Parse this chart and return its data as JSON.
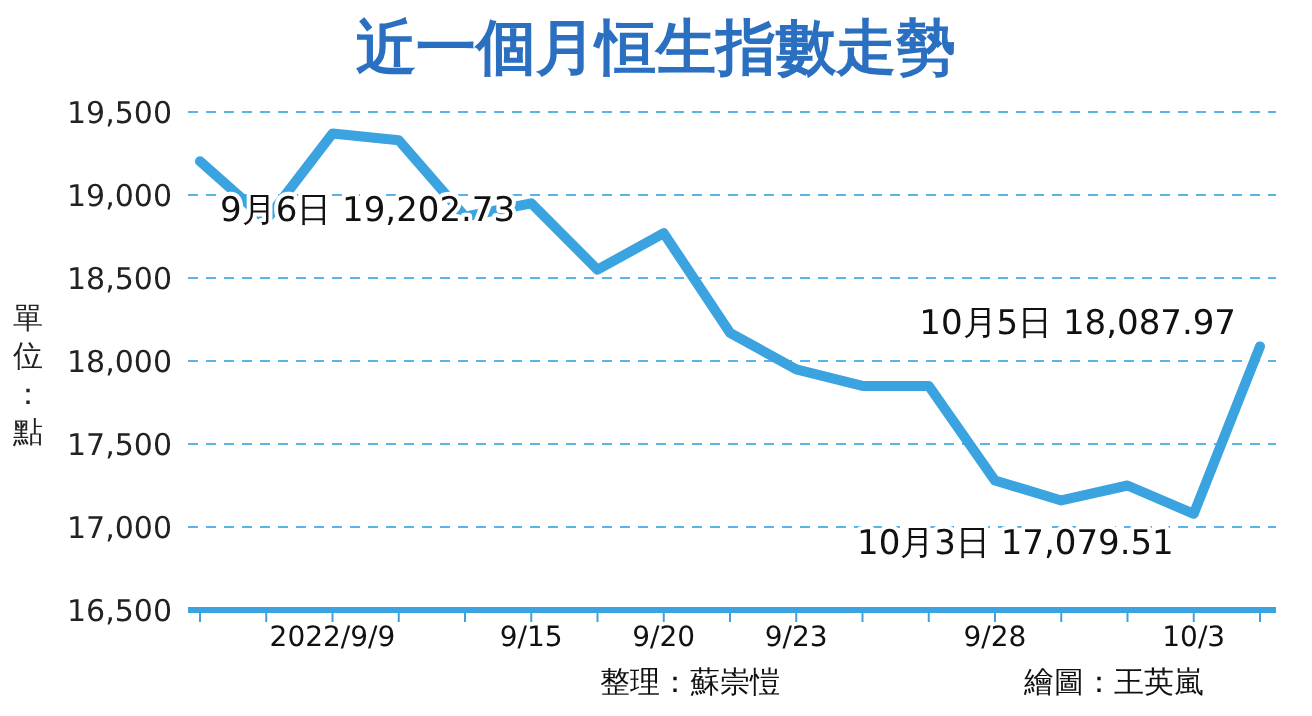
{
  "chart_data": {
    "type": "line",
    "title": "近一個月恒生指數走勢",
    "ylabel": "單位：點",
    "categories": [
      null,
      null,
      "2022/9/9",
      null,
      null,
      "9/15",
      null,
      "9/20",
      null,
      "9/23",
      null,
      null,
      "9/28",
      null,
      null,
      "10/3",
      null
    ],
    "series": [
      {
        "color": "#3ba3e0",
        "values": [
          19202.73,
          18850,
          19370,
          19330,
          18870,
          18950,
          18550,
          18770,
          18170,
          17950,
          17850,
          17850,
          17280,
          17160,
          17250,
          17079.51,
          18087.97
        ],
        "value_labels": [
          "9月6日  19,202.73",
          null,
          null,
          null,
          null,
          null,
          null,
          null,
          null,
          null,
          null,
          null,
          null,
          null,
          null,
          "10月3日  17,079.51",
          "10月5日  18,087.97"
        ]
      }
    ],
    "ylim": [
      16500,
      19500
    ],
    "yticks": [
      {
        "value": 16500,
        "label": "16,500"
      },
      {
        "value": 17000,
        "label": "17,000"
      },
      {
        "value": 17500,
        "label": "17,500"
      },
      {
        "value": 18000,
        "label": "18,000"
      },
      {
        "value": 18500,
        "label": "18,500"
      },
      {
        "value": 19000,
        "label": "19,000"
      },
      {
        "value": 19500,
        "label": "19,500"
      }
    ],
    "grid": "y",
    "legend": false,
    "annotations": [
      "整理：蘇崇愷",
      "繪圖：王英嵐"
    ]
  }
}
